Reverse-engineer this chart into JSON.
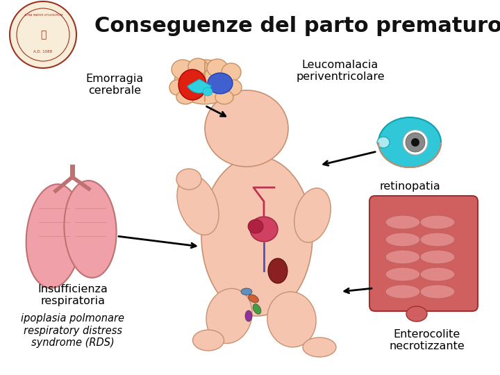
{
  "title": "Conseguenze del parto prematuro",
  "title_fontsize": 22,
  "background_color": "#ffffff",
  "label_emorragia": "Emorragia\ncerebrale",
  "label_leucomalacia": "Leucomalacia\nperiventricolare",
  "label_retinopatia": "retinopatia",
  "label_insufficienza_1": "Insufficienza\nrespiratoria",
  "label_insufficienza_2": "ipoplasia polmonare\nrespiratory distress\nsyndrome (RDS)",
  "label_enterocolite": "Enterocolite\nnecrotizzante",
  "skin_color": "#f5c5b0",
  "skin_edge": "#c89070",
  "brain_color": "#f5c5a0",
  "brain_edge": "#c89060",
  "lung_color": "#f0a0a8",
  "lung_edge": "#c07070",
  "intestine_color": "#d06060",
  "intestine_edge": "#a03030",
  "eye_color": "#30c8d8",
  "arrow_color": "#000000"
}
